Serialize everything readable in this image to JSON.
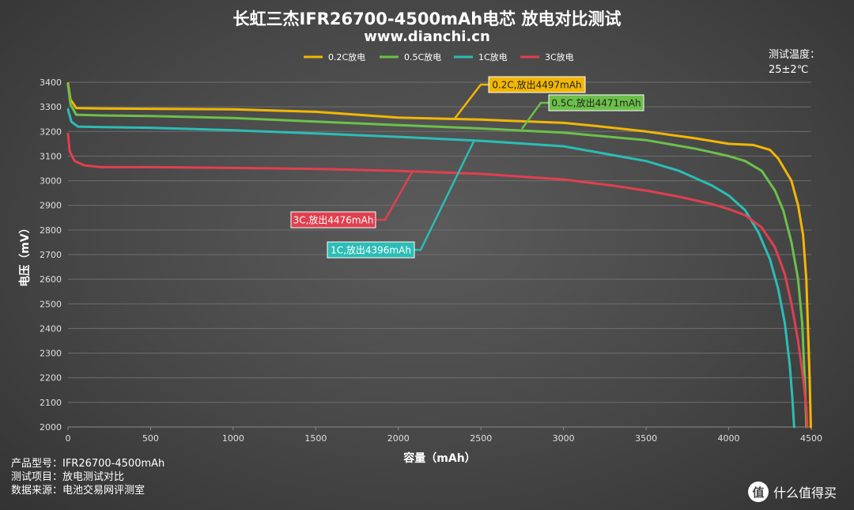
{
  "header": {
    "title": "长虹三杰IFR26700-4500mAh电芯 放电对比测试",
    "subtitle": "www.dianchi.cn"
  },
  "temperature": {
    "label": "测试温度：",
    "value": "25±2℃"
  },
  "footer": {
    "model": "产品型号：IFR26700-4500mAh",
    "test_item": "测试项目：放电测试对比",
    "source": "数据来源：电池交易网评测室"
  },
  "watermark": {
    "text": "什么值得买",
    "badge": "值"
  },
  "chart_data": {
    "type": "line",
    "xlabel": "容量（mAh）",
    "ylabel": "电压（mV）",
    "xlim": [
      0,
      4500
    ],
    "ylim": [
      2000,
      3400
    ],
    "xticks": [
      0,
      500,
      1000,
      1500,
      2000,
      2500,
      3000,
      3500,
      4000,
      4500
    ],
    "yticks": [
      2000,
      2100,
      2200,
      2300,
      2400,
      2500,
      2600,
      2700,
      2800,
      2900,
      3000,
      3100,
      3200,
      3300,
      3400
    ],
    "grid": true,
    "legend_position": "top",
    "series": [
      {
        "name": "0.2C放电",
        "color": "#f2b705",
        "annotation": "0.2C,放出4497mAh",
        "points": [
          [
            0,
            3395
          ],
          [
            15,
            3330
          ],
          [
            50,
            3295
          ],
          [
            200,
            3293
          ],
          [
            500,
            3292
          ],
          [
            1000,
            3290
          ],
          [
            1500,
            3280
          ],
          [
            2000,
            3256
          ],
          [
            2500,
            3248
          ],
          [
            3000,
            3235
          ],
          [
            3200,
            3222
          ],
          [
            3500,
            3200
          ],
          [
            3800,
            3172
          ],
          [
            4000,
            3150
          ],
          [
            4150,
            3145
          ],
          [
            4250,
            3125
          ],
          [
            4300,
            3090
          ],
          [
            4380,
            3000
          ],
          [
            4420,
            2900
          ],
          [
            4450,
            2780
          ],
          [
            4470,
            2600
          ],
          [
            4480,
            2400
          ],
          [
            4490,
            2200
          ],
          [
            4497,
            2000
          ]
        ]
      },
      {
        "name": "0.5C放电",
        "color": "#6cc04a",
        "annotation": "0.5C,放出4471mAh",
        "points": [
          [
            0,
            3390
          ],
          [
            15,
            3310
          ],
          [
            50,
            3268
          ],
          [
            200,
            3265
          ],
          [
            500,
            3263
          ],
          [
            1000,
            3255
          ],
          [
            1500,
            3240
          ],
          [
            2000,
            3226
          ],
          [
            2500,
            3212
          ],
          [
            3000,
            3195
          ],
          [
            3500,
            3165
          ],
          [
            3800,
            3130
          ],
          [
            4000,
            3100
          ],
          [
            4100,
            3080
          ],
          [
            4200,
            3040
          ],
          [
            4280,
            2960
          ],
          [
            4330,
            2880
          ],
          [
            4380,
            2750
          ],
          [
            4420,
            2600
          ],
          [
            4445,
            2420
          ],
          [
            4460,
            2200
          ],
          [
            4471,
            2000
          ]
        ]
      },
      {
        "name": "1C放电",
        "color": "#2bbdb6",
        "annotation": "1C,放出4396mAh",
        "points": [
          [
            0,
            3290
          ],
          [
            20,
            3240
          ],
          [
            60,
            3220
          ],
          [
            200,
            3218
          ],
          [
            500,
            3215
          ],
          [
            1000,
            3205
          ],
          [
            1500,
            3192
          ],
          [
            2000,
            3178
          ],
          [
            2500,
            3162
          ],
          [
            3000,
            3140
          ],
          [
            3500,
            3080
          ],
          [
            3700,
            3040
          ],
          [
            3900,
            2980
          ],
          [
            4000,
            2940
          ],
          [
            4100,
            2880
          ],
          [
            4180,
            2790
          ],
          [
            4250,
            2680
          ],
          [
            4300,
            2560
          ],
          [
            4340,
            2420
          ],
          [
            4370,
            2250
          ],
          [
            4385,
            2120
          ],
          [
            4396,
            2000
          ]
        ]
      },
      {
        "name": "3C放电",
        "color": "#e0404f",
        "annotation": "3C,放出4476mAh",
        "points": [
          [
            0,
            3190
          ],
          [
            10,
            3120
          ],
          [
            40,
            3080
          ],
          [
            100,
            3062
          ],
          [
            200,
            3055
          ],
          [
            500,
            3055
          ],
          [
            1000,
            3052
          ],
          [
            1500,
            3048
          ],
          [
            2000,
            3040
          ],
          [
            2500,
            3028
          ],
          [
            3000,
            3005
          ],
          [
            3300,
            2980
          ],
          [
            3500,
            2960
          ],
          [
            3700,
            2935
          ],
          [
            3900,
            2905
          ],
          [
            4000,
            2885
          ],
          [
            4100,
            2860
          ],
          [
            4200,
            2810
          ],
          [
            4280,
            2730
          ],
          [
            4340,
            2620
          ],
          [
            4380,
            2500
          ],
          [
            4420,
            2350
          ],
          [
            4450,
            2200
          ],
          [
            4470,
            2080
          ],
          [
            4476,
            2000
          ]
        ]
      }
    ]
  }
}
